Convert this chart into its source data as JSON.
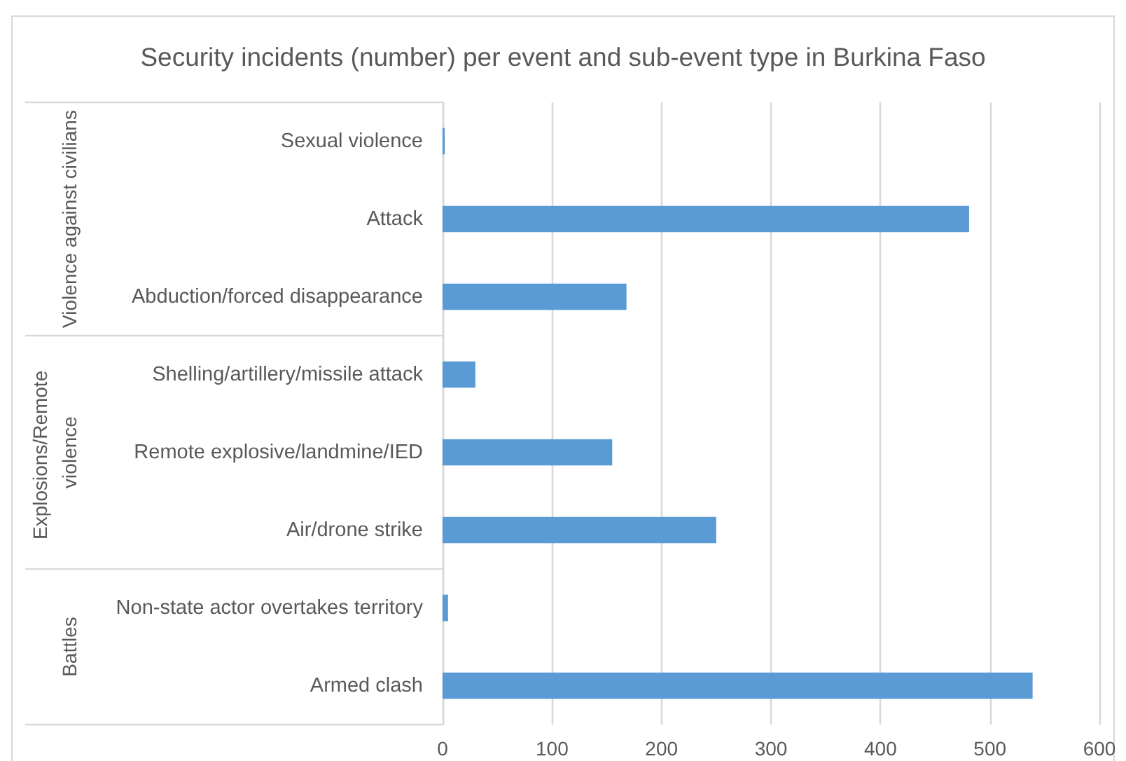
{
  "chart_data": {
    "type": "bar",
    "orientation": "horizontal",
    "title": "Security incidents (number) per event and sub-event type in Burkina Faso",
    "categories": [
      "Sexual violence",
      "Attack",
      "Abduction/forced disappearance",
      "Shelling/artillery/missile attack",
      "Remote explosive/landmine/IED",
      "Air/drone strike",
      "Non-state actor overtakes territory",
      "Armed clash"
    ],
    "values": [
      2,
      481,
      168,
      30,
      155,
      250,
      5,
      539
    ],
    "color": "#5b9bd5",
    "xlim": [
      0,
      600
    ],
    "xticks": [
      0,
      100,
      200,
      300,
      400,
      500,
      600
    ],
    "grid": "x",
    "annotations": [
      "Violence against civilians",
      "Explosions/Remote violence",
      "Battles"
    ]
  }
}
